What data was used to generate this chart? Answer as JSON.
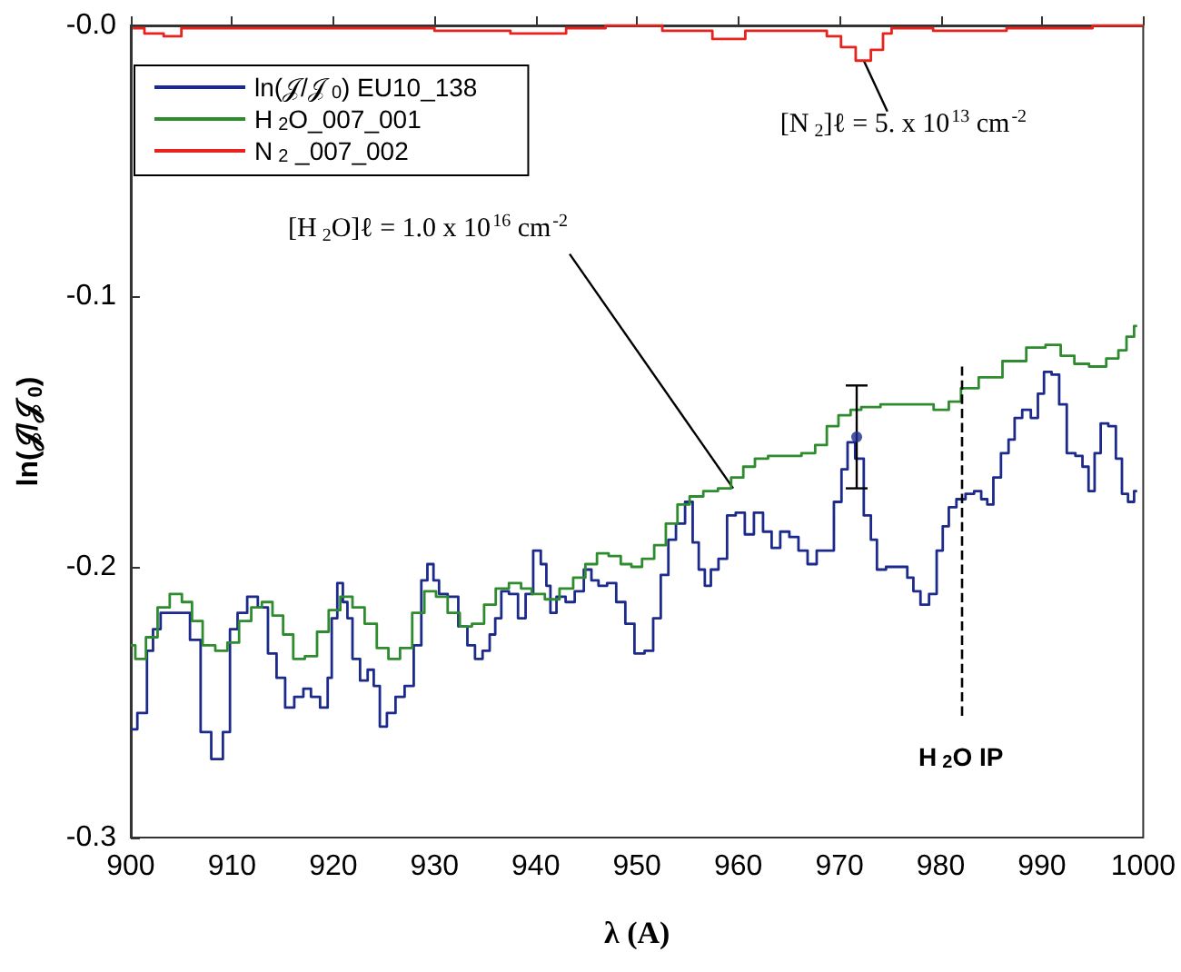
{
  "chart_data": {
    "type": "step",
    "xlabel": "λ (A)",
    "ylabel": "ln(𝒥/𝒥$_{0}$)",
    "xlim": [
      900,
      1000
    ],
    "xticks": [
      900,
      910,
      920,
      930,
      940,
      950,
      960,
      970,
      980,
      990,
      1000
    ],
    "ylim": [
      -0.3,
      0
    ],
    "yticks": [
      -0.3,
      -0.2,
      -0.1,
      {
        "value": 0,
        "label": "-0.0"
      }
    ],
    "grid": false,
    "legend": "top left",
    "series": [
      {
        "name": "ln(𝒥/𝒥$_{0}$) EU10_138",
        "color": "#1c2a8c",
        "x": [
          900.0,
          901.3,
          901.9,
          902.5,
          903.4,
          905.1,
          906.6,
          907.2,
          908.7,
          909.5,
          910.1,
          911.0,
          912.0,
          913.1,
          914.0,
          914.8,
          915.7,
          916.6,
          917.5,
          918.1,
          919.3,
          919.6,
          920.1,
          920.7,
          921.2,
          921.6,
          922.2,
          923.1,
          923.7,
          924.3,
          924.9,
          925.7,
          926.6,
          927.5,
          928.4,
          929.0,
          929.6,
          930.2,
          930.7,
          931.9,
          932.8,
          933.7,
          934.3,
          935.2,
          935.7,
          936.3,
          936.9,
          937.8,
          938.7,
          939.3,
          940.2,
          940.8,
          941.3,
          941.6,
          942.5,
          943.4,
          944.3,
          945.2,
          945.8,
          946.6,
          947.5,
          948.4,
          949.3,
          950.2,
          951.3,
          951.9,
          952.8,
          953.4,
          954.3,
          955.2,
          955.8,
          956.4,
          957.0,
          957.6,
          958.5,
          959.3,
          960.2,
          961.1,
          962.0,
          962.9,
          963.7,
          964.6,
          965.5,
          966.4,
          967.3,
          968.2,
          969.0,
          969.9,
          970.5,
          971.1,
          972.0,
          972.8,
          973.4,
          974.0,
          975.2,
          976.4,
          977.0,
          977.6,
          978.4,
          979.3,
          979.9,
          980.5,
          981.1,
          982.0,
          982.9,
          983.7,
          984.3,
          984.9,
          985.5,
          986.4,
          987.0,
          987.6,
          988.5,
          989.3,
          989.9,
          990.5,
          991.4,
          992.0,
          992.9,
          993.7,
          994.3,
          994.9,
          995.5,
          996.1,
          997.0,
          997.6,
          998.2,
          998.8,
          999.4
        ],
        "values": [
          -0.26,
          -0.254,
          -0.231,
          -0.223,
          -0.217,
          -0.217,
          -0.227,
          -0.261,
          -0.271,
          -0.261,
          -0.223,
          -0.217,
          -0.211,
          -0.215,
          -0.232,
          -0.241,
          -0.252,
          -0.248,
          -0.245,
          -0.248,
          -0.252,
          -0.241,
          -0.219,
          -0.206,
          -0.213,
          -0.219,
          -0.234,
          -0.242,
          -0.238,
          -0.244,
          -0.259,
          -0.254,
          -0.248,
          -0.244,
          -0.229,
          -0.205,
          -0.199,
          -0.205,
          -0.21,
          -0.211,
          -0.222,
          -0.229,
          -0.234,
          -0.231,
          -0.225,
          -0.219,
          -0.209,
          -0.21,
          -0.219,
          -0.21,
          -0.194,
          -0.199,
          -0.207,
          -0.217,
          -0.211,
          -0.213,
          -0.209,
          -0.201,
          -0.205,
          -0.207,
          -0.206,
          -0.213,
          -0.221,
          -0.232,
          -0.231,
          -0.219,
          -0.203,
          -0.19,
          -0.184,
          -0.176,
          -0.191,
          -0.201,
          -0.207,
          -0.201,
          -0.197,
          -0.181,
          -0.18,
          -0.188,
          -0.18,
          -0.187,
          -0.193,
          -0.187,
          -0.189,
          -0.194,
          -0.199,
          -0.194,
          -0.194,
          -0.176,
          -0.164,
          -0.154,
          -0.16,
          -0.181,
          -0.19,
          -0.201,
          -0.2,
          -0.2,
          -0.204,
          -0.209,
          -0.214,
          -0.21,
          -0.194,
          -0.185,
          -0.178,
          -0.175,
          -0.173,
          -0.172,
          -0.175,
          -0.177,
          -0.167,
          -0.158,
          -0.153,
          -0.145,
          -0.142,
          -0.145,
          -0.136,
          -0.128,
          -0.129,
          -0.14,
          -0.158,
          -0.159,
          -0.163,
          -0.172,
          -0.158,
          -0.147,
          -0.148,
          -0.16,
          -0.173,
          -0.176,
          -0.172
        ]
      },
      {
        "name": "H$_{2}$O_007_001",
        "color": "#2e8b2e",
        "x": [
          900.0,
          900.9,
          902.1,
          903.2,
          904.5,
          905.6,
          906.5,
          907.7,
          909.0,
          910.1,
          911.3,
          912.5,
          913.4,
          914.6,
          915.5,
          916.6,
          917.8,
          919.0,
          920.1,
          921.3,
          922.5,
          923.7,
          924.9,
          926.0,
          927.2,
          928.4,
          929.6,
          930.7,
          931.9,
          933.1,
          934.3,
          935.5,
          936.6,
          938.1,
          939.0,
          940.2,
          941.6,
          943.1,
          944.3,
          945.5,
          946.6,
          947.8,
          949.0,
          949.9,
          951.1,
          952.3,
          953.4,
          954.6,
          955.8,
          957.3,
          958.7,
          959.9,
          961.1,
          962.2,
          963.7,
          965.5,
          967.0,
          968.2,
          969.3,
          970.5,
          971.7,
          972.6,
          975.5,
          978.4,
          980.2,
          981.4,
          982.6,
          984.9,
          987.3,
          989.6,
          991.1,
          992.6,
          993.8,
          995.5,
          997.2,
          997.9,
          998.8,
          999.4
        ],
        "values": [
          -0.229,
          -0.234,
          -0.226,
          -0.215,
          -0.21,
          -0.213,
          -0.22,
          -0.229,
          -0.231,
          -0.228,
          -0.22,
          -0.215,
          -0.213,
          -0.218,
          -0.225,
          -0.234,
          -0.233,
          -0.224,
          -0.216,
          -0.211,
          -0.215,
          -0.221,
          -0.23,
          -0.234,
          -0.23,
          -0.217,
          -0.209,
          -0.211,
          -0.217,
          -0.222,
          -0.221,
          -0.214,
          -0.208,
          -0.206,
          -0.208,
          -0.21,
          -0.212,
          -0.208,
          -0.204,
          -0.199,
          -0.195,
          -0.196,
          -0.199,
          -0.2,
          -0.197,
          -0.192,
          -0.184,
          -0.177,
          -0.174,
          -0.172,
          -0.171,
          -0.167,
          -0.163,
          -0.16,
          -0.159,
          -0.159,
          -0.158,
          -0.155,
          -0.148,
          -0.144,
          -0.142,
          -0.141,
          -0.14,
          -0.14,
          -0.142,
          -0.139,
          -0.134,
          -0.13,
          -0.124,
          -0.119,
          -0.118,
          -0.122,
          -0.125,
          -0.126,
          -0.123,
          -0.12,
          -0.115,
          -0.111
        ]
      },
      {
        "name": "N$_{2}$ _007_002",
        "color": "#e8231e",
        "x": [
          900.2,
          902.5,
          904.0,
          906.0,
          915,
          925,
          935,
          940,
          941.7,
          944.3,
          949.5,
          955.5,
          959.4,
          962,
          965,
          968,
          969.5,
          970.8,
          972.4,
          973.8,
          974.8,
          975.5,
          983,
          990,
          1000
        ],
        "values": [
          -0.001,
          -0.003,
          -0.004,
          -0.001,
          -0.001,
          -0.001,
          -0.002,
          -0.003,
          -0.003,
          -0.001,
          0,
          -0.002,
          -0.005,
          -0.002,
          -0.002,
          -0.002,
          -0.004,
          -0.008,
          -0.013,
          -0.009,
          -0.003,
          -0.001,
          -0.002,
          -0.001,
          0
        ]
      },
      {
        "type": "scatter",
        "color": "#1c2a8c",
        "marker": "circle",
        "x": [
          971.7
        ],
        "values": [
          -0.152
        ],
        "errors": [
          [
            -0.171,
            -0.133
          ]
        ]
      }
    ],
    "ref_lines": [
      {
        "axis": "x",
        "value": 982,
        "label": "H$_{2}$O IP",
        "line_style": "dashed",
        "color": "#000000"
      }
    ],
    "annotations": [
      {
        "text": "[N$_{2}$]ℓ = 5. x 10$^{13}$ cm$^{-2}$",
        "x": 972.4,
        "y": -0.013
      },
      {
        "text": "[H$_{2}$O]ℓ = 1.0 x 10$^{16}$ cm$^{-2}$",
        "x": 959.5,
        "y": -0.171
      }
    ]
  }
}
